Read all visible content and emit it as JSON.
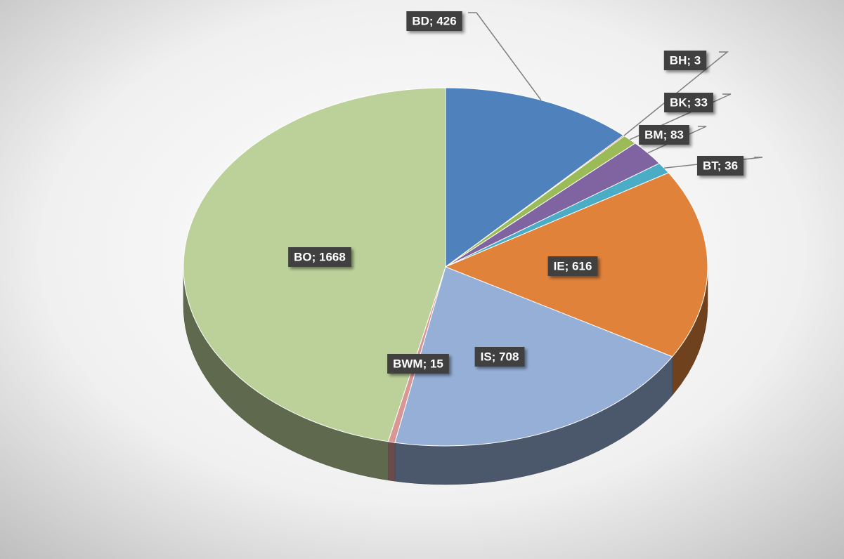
{
  "chart_data": {
    "type": "pie",
    "values": [
      426,
      3,
      33,
      83,
      36,
      616,
      708,
      15,
      1668
    ],
    "value_labels": [
      "BD; 426",
      "BH; 3",
      "BK; 33",
      "BM; 83",
      "BT; 36",
      "IE; 616",
      "IS; 708",
      "BWM; 15",
      "BO; 1668"
    ],
    "colors": [
      "#4f81bd",
      "#c0504d",
      "#9bbb59",
      "#8064a2",
      "#4bacc6",
      "#e0823a",
      "#95afd7",
      "#d99694",
      "#bcd19a"
    ]
  }
}
